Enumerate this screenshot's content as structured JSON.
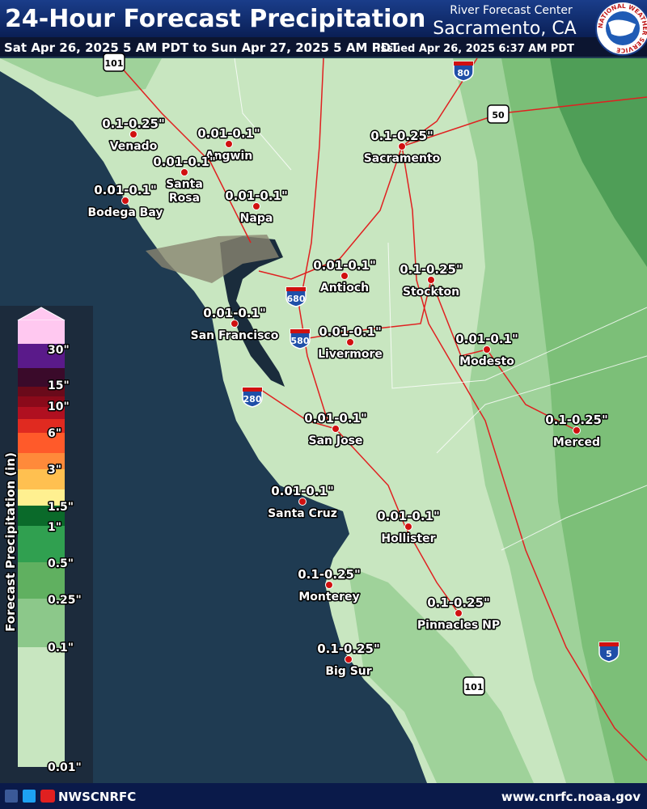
{
  "header": {
    "title": "24-Hour Forecast Precipitation",
    "office_line1": "River Forecast Center",
    "office_line2": "Sacramento, CA",
    "period": "Sat Apr 26, 2025 5 AM PDT to Sun Apr 27, 2025 5 AM PDT",
    "issued": "Issued Apr 26, 2025 6:37 AM PDT",
    "logo_text": "NATIONAL WEATHER SERVICE"
  },
  "locations": [
    {
      "name": "Venado",
      "amount": "0.1-0.25\""
    },
    {
      "name": "Angwin",
      "amount": "0.01-0.1\""
    },
    {
      "name": "Santa Rosa",
      "amount": "0.01-0.1\""
    },
    {
      "name": "Bodega Bay",
      "amount": "0.01-0.1\""
    },
    {
      "name": "Napa",
      "amount": "0.01-0.1\""
    },
    {
      "name": "Sacramento",
      "amount": "0.1-0.25\""
    },
    {
      "name": "Antioch",
      "amount": "0.01-0.1\""
    },
    {
      "name": "Stockton",
      "amount": "0.1-0.25\""
    },
    {
      "name": "San Francisco",
      "amount": "0.01-0.1\""
    },
    {
      "name": "Livermore",
      "amount": "0.01-0.1\""
    },
    {
      "name": "Modesto",
      "amount": "0.01-0.1\""
    },
    {
      "name": "Merced",
      "amount": "0.1-0.25\""
    },
    {
      "name": "San Jose",
      "amount": "0.01-0.1\""
    },
    {
      "name": "Santa Cruz",
      "amount": "0.01-0.1\""
    },
    {
      "name": "Hollister",
      "amount": "0.01-0.1\""
    },
    {
      "name": "Monterey",
      "amount": "0.1-0.25\""
    },
    {
      "name": "Pinnacles NP",
      "amount": "0.1-0.25\""
    },
    {
      "name": "Big Sur",
      "amount": "0.1-0.25\""
    }
  ],
  "legend": {
    "title": "Forecast Precipitation (in)",
    "labels": [
      "30\"",
      "15\"",
      "10\"",
      "6\"",
      "3\"",
      "1.5\"",
      "1\"",
      "0.5\"",
      "0.25\"",
      "0.1\"",
      "0.01\""
    ]
  },
  "highway_shields": [
    "101",
    "80",
    "50",
    "680",
    "580",
    "280",
    "5",
    "101"
  ],
  "footer": {
    "handle": "NWSCNRFC",
    "url": "www.cnrfc.noaa.gov"
  }
}
